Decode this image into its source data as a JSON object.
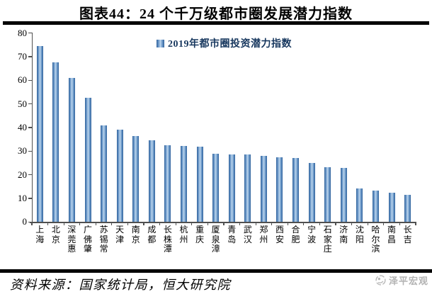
{
  "header": {
    "title": "图表44：24 个千万级都市圈发展潜力指数"
  },
  "legend": {
    "label": "2019年都市圈投资潜力指数"
  },
  "footer": {
    "source": "资料来源：国家统计局，恒大研究院",
    "watermark": "泽平宏观"
  },
  "colors": {
    "bar_edge": "#30619A",
    "bar_center": "#C2D8ED",
    "legend_text": "#17375E",
    "axis": "#505050",
    "watermark_gray": "#B3B3B3",
    "rule_black": "#000000"
  },
  "chart_data": {
    "type": "bar",
    "title": "图表44：24 个千万级都市圈发展潜力指数",
    "legend_entries": [
      "2019年都市圈投资潜力指数"
    ],
    "legend_position": "top-center",
    "categories": [
      "上海",
      "北京",
      "深莞惠",
      "广佛肇",
      "苏锡常",
      "天津",
      "南京",
      "成都",
      "长株潭",
      "杭州",
      "重庆",
      "厦泉漳",
      "青岛",
      "武汉",
      "郑州",
      "西安",
      "合肥",
      "宁波",
      "石家庄",
      "济南",
      "沈阳",
      "哈尔滨",
      "南昌",
      "长吉"
    ],
    "values": [
      74.5,
      67.5,
      61.0,
      52.5,
      41.0,
      39.0,
      36.5,
      34.5,
      32.5,
      32.2,
      32.0,
      29.0,
      28.7,
      28.5,
      28.0,
      27.3,
      27.0,
      25.0,
      23.3,
      23.0,
      14.2,
      13.3,
      12.4,
      11.4
    ],
    "xlabel": "",
    "ylabel": "",
    "ylim": [
      0,
      80
    ],
    "yticks": [
      0,
      10,
      20,
      30,
      40,
      50,
      60,
      70,
      80
    ],
    "grid": false
  }
}
